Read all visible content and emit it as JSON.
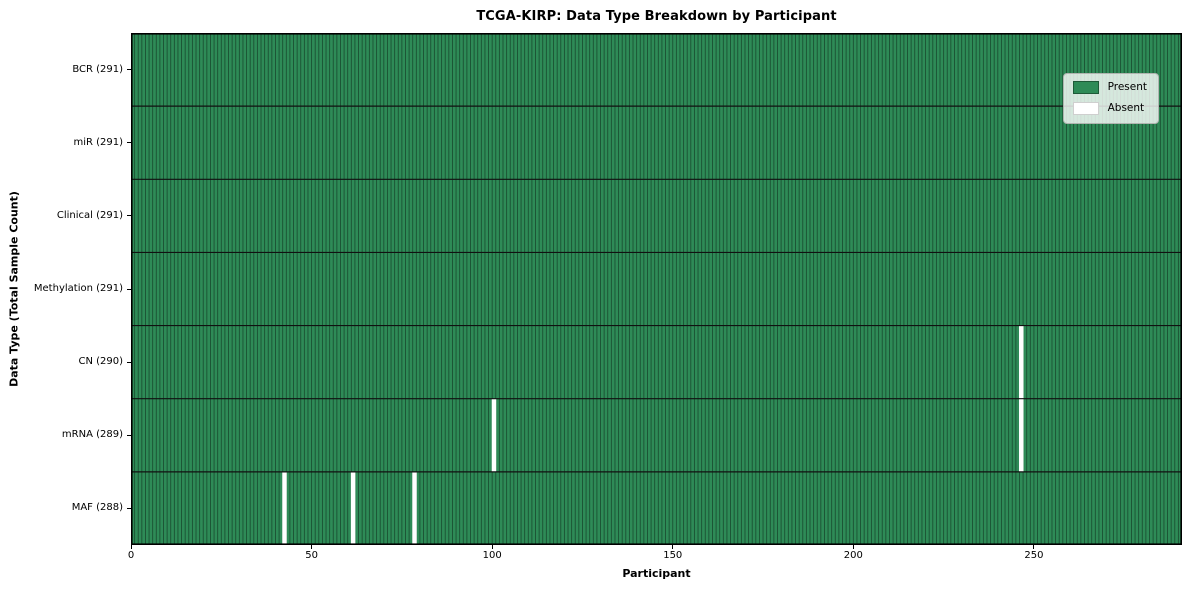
{
  "chart_data": {
    "type": "heatmap",
    "title": "TCGA-KIRP: Data Type Breakdown by Participant",
    "xlabel": "Participant",
    "ylabel": "Data Type (Total Sample Count)",
    "x_ticks": [
      0,
      50,
      100,
      150,
      200,
      250
    ],
    "x_range": [
      0,
      291
    ],
    "n_participants": 291,
    "grid": true,
    "legend_position": "upper right",
    "rows": [
      {
        "label": "BCR (291)",
        "data_type": "BCR",
        "count": 291,
        "absent_participants": []
      },
      {
        "label": "miR (291)",
        "data_type": "miR",
        "count": 291,
        "absent_participants": []
      },
      {
        "label": "Clinical (291)",
        "data_type": "Clinical",
        "count": 291,
        "absent_participants": []
      },
      {
        "label": "Methylation (291)",
        "data_type": "Methylation",
        "count": 291,
        "absent_participants": []
      },
      {
        "label": "CN (290)",
        "data_type": "CN",
        "count": 290,
        "absent_participants": [
          246
        ]
      },
      {
        "label": "mRNA (289)",
        "data_type": "mRNA",
        "count": 289,
        "absent_participants": [
          100,
          246
        ]
      },
      {
        "label": "MAF (288)",
        "data_type": "MAF",
        "count": 288,
        "absent_participants": [
          42,
          61,
          78
        ]
      }
    ],
    "legend": [
      {
        "label": "Present",
        "color": "#2e8b57"
      },
      {
        "label": "Absent",
        "color": "#ffffff"
      }
    ],
    "colors": {
      "present": "#2e8b57",
      "absent": "#ffffff",
      "cell_border": "rgba(0,0,0,0.42)",
      "row_divider": "#111111",
      "axes_border": "#000000"
    }
  }
}
